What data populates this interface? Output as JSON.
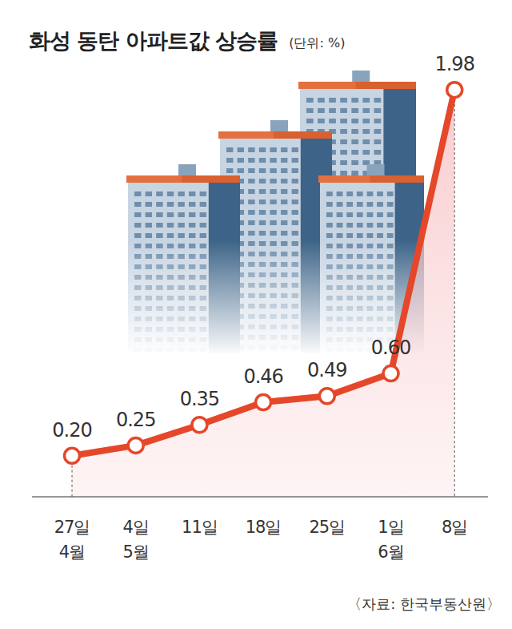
{
  "chart_data": {
    "type": "line",
    "title": "화성 동탄 아파트값 상승률",
    "subtitle": "(단위: %)",
    "source": "〈자료: 한국부동산원〉",
    "categories": [
      "27일\n4월",
      "4일\n5월",
      "11일",
      "18일",
      "25일",
      "1일\n6월",
      "8일"
    ],
    "values": [
      0.2,
      0.25,
      0.35,
      0.46,
      0.49,
      0.6,
      1.98
    ],
    "value_labels": [
      "0.20",
      "0.25",
      "0.35",
      "0.46",
      "0.49",
      "0.60",
      "1.98"
    ],
    "color": "#e5472a",
    "ylim": [
      0,
      2
    ],
    "data_labels": true,
    "tick_labels": "x",
    "marker": "circle"
  }
}
